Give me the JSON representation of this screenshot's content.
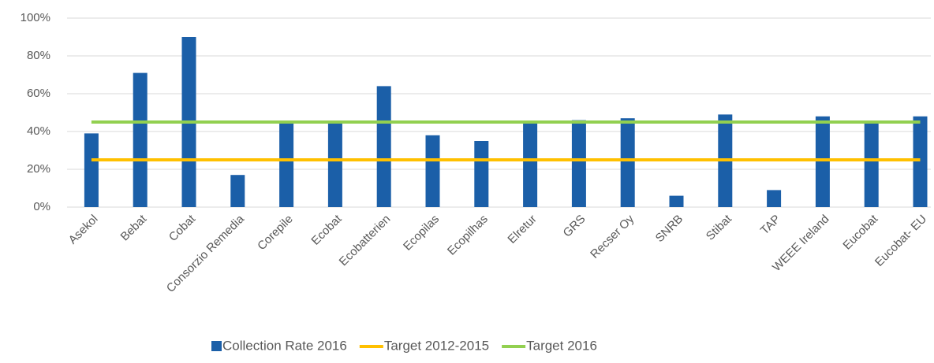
{
  "chart_data": {
    "type": "bar",
    "categories": [
      "Asekol",
      "Bebat",
      "Cobat",
      "Consorzio Remedia",
      "Corepile",
      "Ecobat",
      "Ecobatterien",
      "Ecopilas",
      "Ecopilhas",
      "Elretur",
      "GRS",
      "Recser Oy",
      "SNRB",
      "Stibat",
      "TAP",
      "WEEE Ireland",
      "Eucobat",
      "Eucobat- EU"
    ],
    "series": [
      {
        "name": "Collection Rate 2016",
        "type": "bar",
        "color": "#1b5fa8",
        "values": [
          39,
          71,
          90,
          17,
          45,
          45,
          64,
          38,
          35,
          45,
          46,
          47,
          6,
          49,
          9,
          48,
          45,
          48
        ]
      },
      {
        "name": "Target 2012-2015",
        "type": "line",
        "color": "#ffc000",
        "values": [
          25,
          25,
          25,
          25,
          25,
          25,
          25,
          25,
          25,
          25,
          25,
          25,
          25,
          25,
          25,
          25,
          25,
          25
        ]
      },
      {
        "name": "Target 2016",
        "type": "line",
        "color": "#92d050",
        "values": [
          45,
          45,
          45,
          45,
          45,
          45,
          45,
          45,
          45,
          45,
          45,
          45,
          45,
          45,
          45,
          45,
          45,
          45
        ]
      }
    ],
    "ylim": [
      0,
      100
    ],
    "yticks": [
      {
        "value": 0,
        "label": "0%"
      },
      {
        "value": 20,
        "label": "20%"
      },
      {
        "value": 40,
        "label": "40%"
      },
      {
        "value": 60,
        "label": "60%"
      },
      {
        "value": 80,
        "label": "80%"
      },
      {
        "value": 100,
        "label": "100%"
      }
    ],
    "grid": true,
    "legend": "bottom"
  }
}
